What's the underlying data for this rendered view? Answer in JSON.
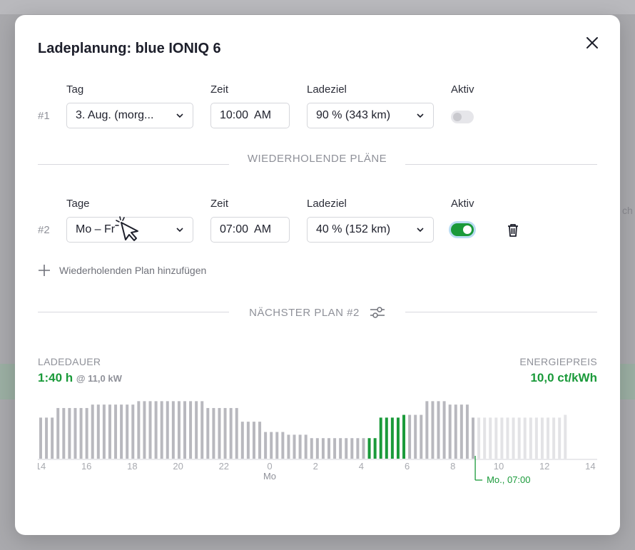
{
  "dialog": {
    "title": "Ladeplanung: blue IONIQ 6"
  },
  "plan1": {
    "number": "#1",
    "day_label": "Tag",
    "day_value": "3. Aug. (morg...",
    "time_label": "Zeit",
    "time_value": "10:00  AM",
    "target_label": "Ladeziel",
    "target_value": "90 % (343 km)",
    "active_label": "Aktiv",
    "active": false
  },
  "recurring_title": "WIEDERHOLENDE PLÄNE",
  "plan2": {
    "number": "#2",
    "day_label": "Tage",
    "day_value": "Mo – Fr",
    "time_label": "Zeit",
    "time_value": "07:00  AM",
    "target_label": "Ladeziel",
    "target_value": "40 % (152 km)",
    "active_label": "Aktiv",
    "active": true
  },
  "add_plan_label": "Wiederholenden Plan hinzufügen",
  "next_plan_title": "NÄCHSTER PLAN #2",
  "stats": {
    "duration_label": "LADEDAUER",
    "duration_value": "1:40 h",
    "power_value": "@ 11,0 kW",
    "price_label": "ENERGIEPREIS",
    "price_value": "10,0 ct/kWh"
  },
  "background_text": "ch",
  "colors": {
    "accent": "#1a9a3a",
    "bar_past": "#b8b8be",
    "bar_future": "#e3e3e6",
    "bar_charging": "#1a9a3a"
  },
  "chart_data": {
    "type": "bar",
    "x_tick_labels": [
      "14",
      "16",
      "18",
      "20",
      "22",
      "0",
      "2",
      "4",
      "6",
      "8",
      "10",
      "12",
      "14"
    ],
    "day_label": "Mo",
    "marker_label": "Mo., 07:00",
    "values": [
      60,
      60,
      60,
      74,
      74,
      74,
      74,
      74,
      74,
      79,
      79,
      79,
      79,
      79,
      79,
      79,
      79,
      84,
      84,
      84,
      84,
      84,
      84,
      84,
      84,
      84,
      84,
      84,
      84,
      74,
      74,
      74,
      74,
      74,
      74,
      54,
      54,
      54,
      54,
      39,
      39,
      39,
      39,
      35,
      35,
      35,
      35,
      30,
      30,
      30,
      30,
      30,
      30,
      30,
      30,
      30,
      30,
      30,
      30,
      60,
      60,
      60,
      60,
      64,
      64,
      64,
      64,
      84,
      84,
      84,
      84,
      79,
      79,
      79,
      79,
      60,
      60,
      60,
      60,
      60,
      60,
      60,
      60,
      60,
      60,
      60,
      60,
      60,
      60,
      60,
      60,
      64
    ],
    "charging_range": [
      57,
      63
    ],
    "future_start": 76,
    "ylim": [
      0,
      100
    ]
  }
}
